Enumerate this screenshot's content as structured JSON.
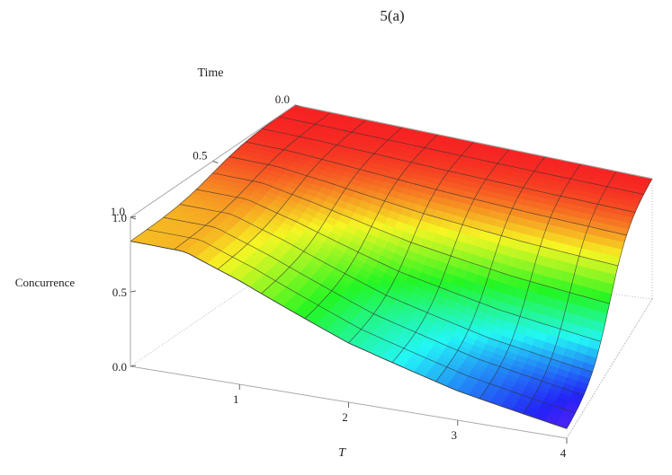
{
  "chart_data": {
    "type": "surface3d",
    "title": "5(a)",
    "xlabel": "T",
    "ylabel": "Time",
    "zlabel": "Concurrence",
    "xlim": [
      0,
      4
    ],
    "ylim": [
      0,
      1
    ],
    "zlim": [
      0,
      1
    ],
    "x_ticks": [
      "1",
      "2",
      "3",
      "4"
    ],
    "x_tick_values": [
      1,
      2,
      3,
      4
    ],
    "y_ticks": [
      "0.0",
      "0.5",
      "1.0"
    ],
    "y_tick_values": [
      0,
      0.5,
      1
    ],
    "z_ticks": [
      "0.0",
      "0.5",
      "1.0"
    ],
    "z_tick_values": [
      0,
      0.5,
      1
    ],
    "colormap": "rainbow (red = high, violet = low)",
    "mesh_lines": 10,
    "surface_samples": {
      "x_at_time_0": [
        0,
        4
      ],
      "concurrence_at_time_0": [
        1.0,
        1.0
      ],
      "x_at_time_1": [
        0,
        0.5,
        1,
        2,
        3,
        4
      ],
      "concurrence_at_time_1": [
        0.84,
        0.85,
        0.73,
        0.44,
        0.23,
        0.08
      ]
    }
  }
}
